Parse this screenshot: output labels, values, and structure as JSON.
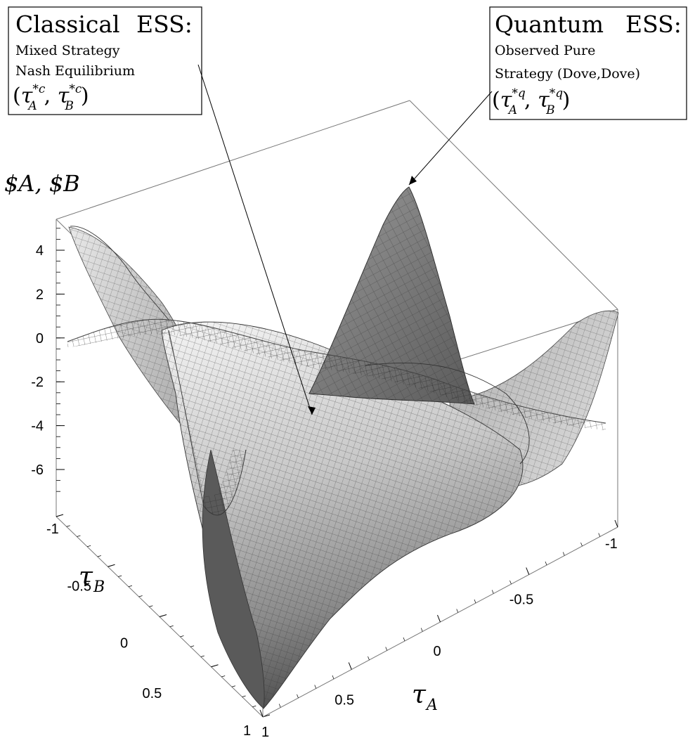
{
  "chart_data": {
    "type": "surface",
    "z_axis": {
      "label": "$A, $B",
      "ticks": [
        "4",
        "2",
        "0",
        "-2",
        "-4",
        "-6"
      ],
      "range": [
        -7,
        5
      ]
    },
    "x_axis": {
      "label": "τA",
      "ticks": [
        "-1",
        "-0.5",
        "0",
        "0.5",
        "1"
      ],
      "range": [
        -1,
        1
      ]
    },
    "y_axis": {
      "label": "τB",
      "ticks": [
        "-1",
        "-0.5",
        "0",
        "0.5",
        "1"
      ],
      "range": [
        -1,
        1
      ]
    },
    "surfaces": [
      {
        "style": "shaded",
        "description_values": {
          "peak_z": 4.9,
          "min_z": -7
        }
      },
      {
        "style": "wireframe",
        "description_values": {
          "peak_z": 4.9,
          "min_z": -4.5
        }
      }
    ],
    "annotations": [
      {
        "heading_left": "Classical",
        "heading_right": "ESS:",
        "line1": "Mixed Strategy",
        "line2": "Nash Equilibrium",
        "math_base1": "τ",
        "math_sub1": "A",
        "math_sup1": "*c",
        "math_base2": "τ",
        "math_sub2": "B",
        "math_sup2": "*c",
        "points_to": {
          "tauA": 0,
          "tauB": 0,
          "z": -3.5
        }
      },
      {
        "heading_left": "Quantum",
        "heading_right": "ESS:",
        "line1": "Observed Pure",
        "line2": "Strategy (Dove,Dove)",
        "math_base1": "τ",
        "math_sub1": "A",
        "math_sup1": "*q",
        "math_base2": "τ",
        "math_sub2": "B",
        "math_sup2": "*q",
        "points_to": {
          "tauA": -1,
          "tauB": -1,
          "z": 3.5
        }
      }
    ],
    "grid": false,
    "legend": "none",
    "colors": {
      "surface_light": "#f2f2f2",
      "surface_dark": "#6a6a6a",
      "mesh": "#222222"
    }
  }
}
